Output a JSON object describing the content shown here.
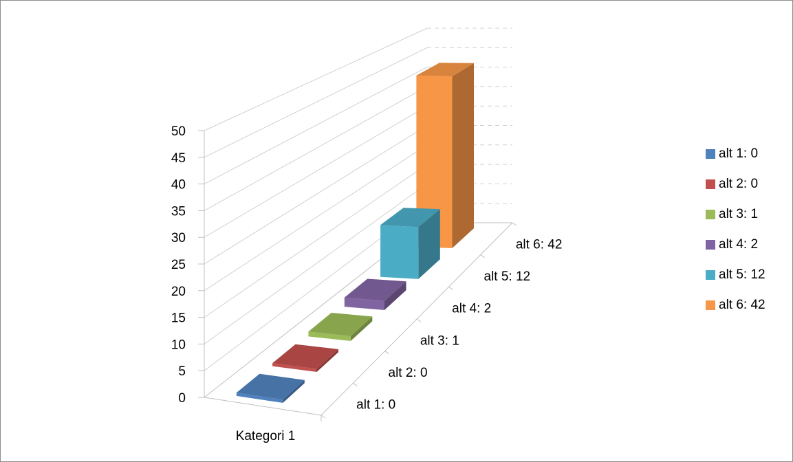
{
  "chart_data": {
    "type": "bar",
    "variant": "3d-column",
    "category_axis": [
      "Kategori 1"
    ],
    "series": [
      {
        "name": "alt 1: 0",
        "value": 0,
        "color": "#4f81bd"
      },
      {
        "name": "alt 2: 0",
        "value": 0,
        "color": "#c0504d"
      },
      {
        "name": "alt 3: 1",
        "value": 1,
        "color": "#9bbb59"
      },
      {
        "name": "alt 4: 2",
        "value": 2,
        "color": "#8064a2"
      },
      {
        "name": "alt 5: 12",
        "value": 12,
        "color": "#4bacc6"
      },
      {
        "name": "alt 6: 42",
        "value": 42,
        "color": "#f79646"
      }
    ],
    "ylim": [
      0,
      50
    ],
    "y_ticks": [
      "0",
      "5",
      "10",
      "15",
      "20",
      "25",
      "30",
      "35",
      "40",
      "45",
      "50"
    ],
    "grid": true,
    "legend_position": "right"
  }
}
